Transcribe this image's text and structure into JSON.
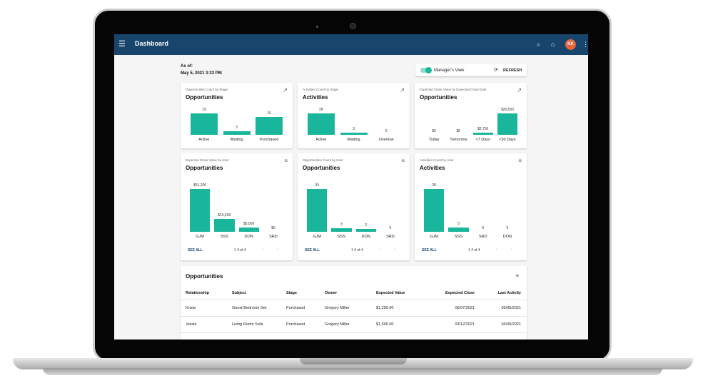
{
  "appbar": {
    "title": "Dashboard",
    "avatar_initials": "KK"
  },
  "asof": {
    "label": "As of:",
    "date": "May 5, 2021 3:33 PM"
  },
  "manager_view": {
    "label": "Manager's View",
    "enabled": true,
    "refresh_label": "REFRESH"
  },
  "cards": [
    {
      "subtitle": "Opportunities Count by Stage",
      "title": "Opportunities",
      "chart_data": {
        "type": "bar",
        "categories": [
          "Active",
          "Waiting",
          "Purchased"
        ],
        "values": [
          19,
          3,
          16
        ],
        "labels": [
          "19",
          "3",
          "16"
        ],
        "ylim": [
          0,
          19
        ]
      }
    },
    {
      "subtitle": "Activities Count by Stage",
      "title": "Activities",
      "chart_data": {
        "type": "bar",
        "categories": [
          "Active",
          "Waiting",
          "Overdue"
        ],
        "values": [
          28,
          3,
          0
        ],
        "labels": [
          "28",
          "3",
          "0"
        ],
        "ylim": [
          0,
          28
        ]
      }
    },
    {
      "subtitle": "Expected Close Value by Expected Close Date",
      "title": "Opportunities",
      "chart_data": {
        "type": "bar",
        "categories": [
          "Today",
          "Tomorrow",
          "<7 Days",
          "<30 Days"
        ],
        "values": [
          0,
          0,
          2750,
          26650
        ],
        "labels": [
          "$0",
          "$0",
          "$2,750",
          "$26,650"
        ],
        "ylim": [
          0,
          26650
        ]
      }
    },
    {
      "subtitle": "Expected Close Value by User",
      "title": "Opportunities",
      "chart_data": {
        "type": "bar",
        "categories": [
          "GJM",
          "SSS",
          "DON",
          "SRD"
        ],
        "values": [
          51200,
          15500,
          5000,
          0
        ],
        "labels": [
          "$51,200",
          "$15,500",
          "$5,000",
          "$0"
        ],
        "ylim": [
          0,
          51200
        ]
      },
      "see_all": "SEE ALL",
      "pager": "1 4 of 4"
    },
    {
      "subtitle": "Opportunities Count by User",
      "title": "Opportunities",
      "chart_data": {
        "type": "bar",
        "categories": [
          "GJM",
          "SSS",
          "DON",
          "SRD"
        ],
        "values": [
          33,
          3,
          2,
          0
        ],
        "labels": [
          "33",
          "3",
          "2",
          "0"
        ],
        "ylim": [
          0,
          33
        ]
      },
      "see_all": "SEE ALL",
      "pager": "1 4 of 4"
    },
    {
      "subtitle": "Activities Count by User",
      "title": "Activities",
      "chart_data": {
        "type": "bar",
        "categories": [
          "GJM",
          "SSS",
          "SRD",
          "DON"
        ],
        "values": [
          28,
          3,
          0,
          0
        ],
        "labels": [
          "28",
          "3",
          "0",
          "0"
        ],
        "ylim": [
          0,
          28
        ]
      },
      "see_all": "SEE ALL",
      "pager": "1 4 of 4"
    }
  ],
  "table": {
    "title": "Opportunities",
    "columns": [
      "Relationship",
      "Subject",
      "Stage",
      "Owner",
      "Expected Value",
      "Expected Close",
      "Last Activity"
    ],
    "rows": [
      [
        "Krista",
        "Guest Bedroom Set",
        "Purchased",
        "Gregory Miller",
        "$1,250.00",
        "05/07/2021",
        "05/05/2021"
      ],
      [
        "Jessie",
        "Living Room Sofa",
        "Purchased",
        "Gregory Miller",
        "$1,500.00",
        "03/12/2021",
        "04/30/2021"
      ]
    ]
  },
  "colors": {
    "appbar": "#17456b",
    "bar": "#1ab69c",
    "avatar": "#e8643b"
  }
}
